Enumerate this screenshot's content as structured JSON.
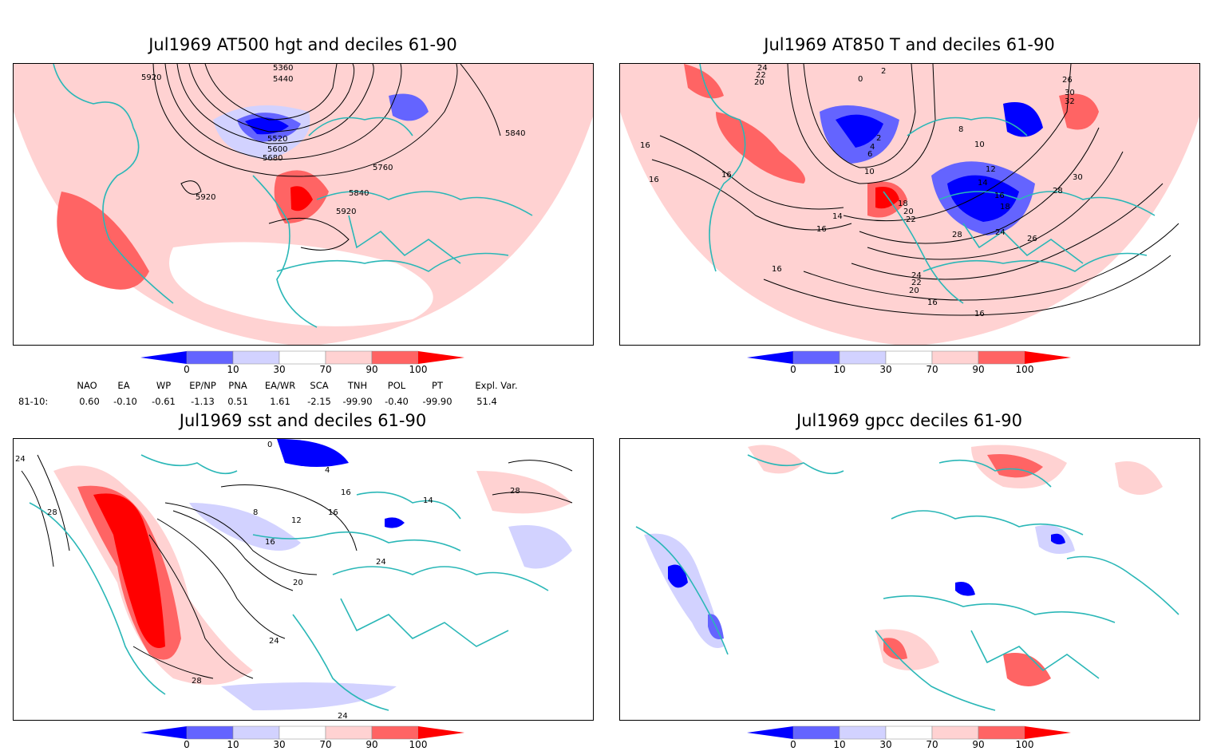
{
  "panels": [
    {
      "title": "Jul1969 AT500 hgt and deciles 61-90",
      "contour_labels": [
        "5360",
        "5440",
        "5920",
        "5520",
        "5600",
        "5680",
        "5760",
        "5840",
        "5840",
        "5920",
        "5920"
      ]
    },
    {
      "title": "Jul1969 AT850 T and deciles 61-90",
      "contour_labels": [
        "24",
        "22",
        "20",
        "2",
        "0",
        "2",
        "4",
        "6",
        "8",
        "10",
        "10",
        "12",
        "14",
        "16",
        "18",
        "16",
        "16",
        "18",
        "20",
        "22",
        "24",
        "26",
        "28",
        "30",
        "32",
        "26",
        "28",
        "30",
        "16",
        "16",
        "14",
        "24",
        "22",
        "20",
        "16",
        "16",
        "16"
      ]
    },
    {
      "title": "Jul1969 sst and deciles 61-90",
      "contour_labels": [
        "24",
        "28",
        "0",
        "4",
        "8",
        "12",
        "16",
        "20",
        "24",
        "28",
        "16",
        "14",
        "24",
        "28",
        "24",
        "16"
      ]
    },
    {
      "title": "Jul1969 gpcc deciles 61-90",
      "contour_labels": []
    }
  ],
  "colorbar": {
    "ticks": [
      "0",
      "10",
      "30",
      "70",
      "90",
      "100"
    ],
    "colors": [
      "#0000ff",
      "#6464ff",
      "#d2d2ff",
      "#ffffff",
      "#ffd2d2",
      "#ff6464",
      "#ff0000"
    ]
  },
  "indices": {
    "period_label": "81-10:",
    "headers": [
      "NAO",
      "EA",
      "WP",
      "EP/NP",
      "PNA",
      "EA/WR",
      "SCA",
      "TNH",
      "POL",
      "PT",
      "Expl. Var."
    ],
    "values": [
      "0.60",
      "-0.10",
      "-0.61",
      "-1.13",
      "0.51",
      "1.61",
      "-2.15",
      "-99.90",
      "-0.40",
      "-99.90",
      "51.4"
    ]
  },
  "colors": {
    "coast": "#2ab7b7",
    "frame": "#000000",
    "warm": "#ff6464",
    "warm_light": "#ffd2d2",
    "cold": "#6464ff",
    "cold_light": "#d2d2ff"
  }
}
